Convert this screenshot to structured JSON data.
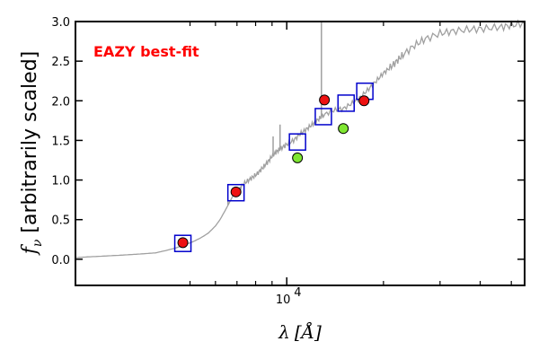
{
  "chart_data": {
    "type": "scatter",
    "ylabel_main": "f",
    "ylabel_sub": "ν",
    "ylabel_rest": " [arbitrarily scaled]",
    "xlabel_main": "λ",
    "xlabel_unit": "[Å]",
    "annotation": "EAZY best-fit",
    "annotation_color": "#ff0000",
    "x_tick_base": "10",
    "x_tick_exp": "4",
    "x_scale": "log",
    "xlim": [
      2200,
      55000
    ],
    "ylim": [
      -0.33,
      3.0
    ],
    "yticks": [
      "0.0",
      "0.5",
      "1.0",
      "1.5",
      "2.0",
      "2.5",
      "3.0"
    ],
    "ytick_values": [
      0.0,
      0.5,
      1.0,
      1.5,
      2.0,
      2.5,
      3.0
    ],
    "xminor_ticks": [
      5000,
      6000,
      7000,
      8000,
      9000,
      20000,
      30000,
      40000,
      50000
    ],
    "template_color": "#a0a0a0",
    "template": [
      [
        2200,
        0.02
      ],
      [
        2400,
        0.03
      ],
      [
        2700,
        0.04
      ],
      [
        3000,
        0.05
      ],
      [
        3300,
        0.06
      ],
      [
        3600,
        0.07
      ],
      [
        3900,
        0.08
      ],
      [
        4200,
        0.11
      ],
      [
        4500,
        0.14
      ],
      [
        4800,
        0.18
      ],
      [
        5100,
        0.22
      ],
      [
        5400,
        0.27
      ],
      [
        5700,
        0.33
      ],
      [
        6000,
        0.42
      ],
      [
        6200,
        0.5
      ],
      [
        6400,
        0.6
      ],
      [
        6600,
        0.7
      ],
      [
        6800,
        0.8
      ],
      [
        7000,
        0.85
      ],
      [
        7200,
        0.92
      ],
      [
        7500,
        0.98
      ],
      [
        7800,
        1.03
      ],
      [
        8100,
        1.08
      ],
      [
        8400,
        1.15
      ],
      [
        8700,
        1.22
      ],
      [
        9000,
        1.3
      ],
      [
        9300,
        1.36
      ],
      [
        9600,
        1.4
      ],
      [
        10000,
        1.45
      ],
      [
        10500,
        1.5
      ],
      [
        11000,
        1.58
      ],
      [
        11500,
        1.64
      ],
      [
        12000,
        1.7
      ],
      [
        12500,
        1.76
      ],
      [
        13000,
        1.82
      ],
      [
        14000,
        1.88
      ],
      [
        15000,
        1.9
      ],
      [
        16000,
        1.97
      ],
      [
        17000,
        2.05
      ],
      [
        18000,
        2.15
      ],
      [
        19000,
        2.25
      ],
      [
        20000,
        2.35
      ],
      [
        21000,
        2.42
      ],
      [
        22000,
        2.5
      ],
      [
        23000,
        2.58
      ],
      [
        25000,
        2.7
      ],
      [
        27000,
        2.78
      ],
      [
        30000,
        2.85
      ],
      [
        33000,
        2.88
      ],
      [
        37000,
        2.9
      ],
      [
        41000,
        2.91
      ],
      [
        46000,
        2.93
      ],
      [
        50000,
        2.95
      ],
      [
        55000,
        2.98
      ]
    ],
    "spikes": [
      {
        "x": 6563,
        "y_top": 0.75
      },
      {
        "x": 9069,
        "y_top": 1.55
      },
      {
        "x": 9532,
        "y_top": 1.7
      },
      {
        "x": 12820,
        "y_top": 3.0
      }
    ],
    "series": [
      {
        "marker": "square",
        "color": "#0000cc",
        "points": [
          [
            4750,
            0.2
          ],
          [
            6950,
            0.84
          ],
          [
            10800,
            1.48
          ],
          [
            13000,
            1.8
          ],
          [
            15300,
            1.97
          ],
          [
            17500,
            2.12
          ]
        ]
      },
      {
        "marker": "circle",
        "color": "#ee1111",
        "points": [
          [
            4750,
            0.21
          ],
          [
            6950,
            0.85
          ],
          [
            13100,
            2.01
          ],
          [
            17400,
            2.0
          ]
        ]
      },
      {
        "marker": "circle",
        "color": "#7fe632",
        "points": [
          [
            10800,
            1.28
          ],
          [
            15000,
            1.65
          ]
        ]
      }
    ]
  }
}
